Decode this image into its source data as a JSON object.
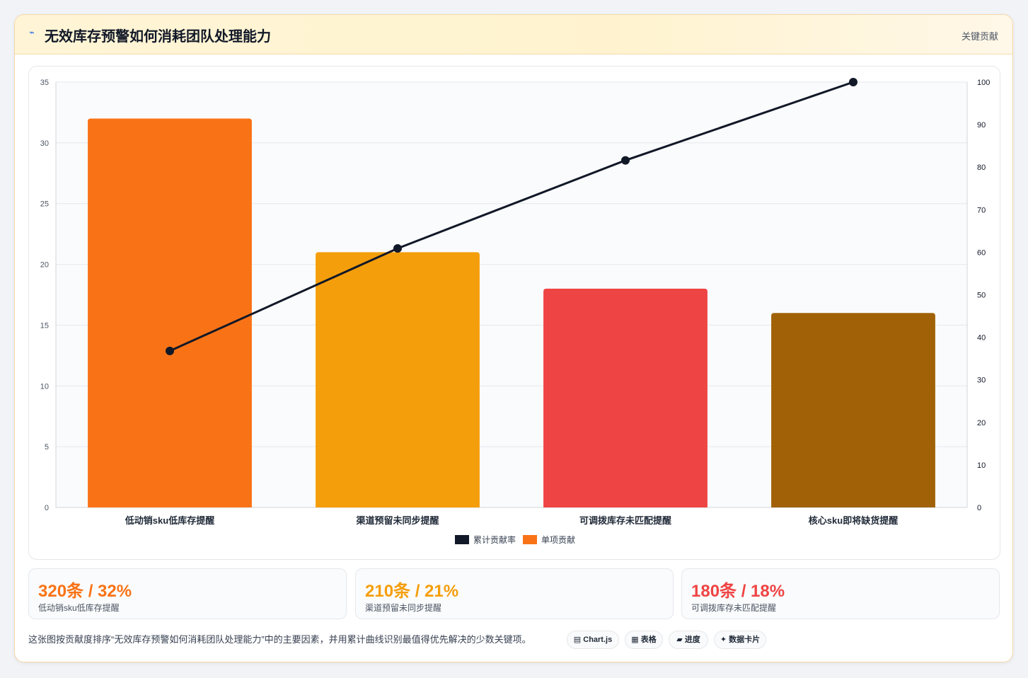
{
  "header": {
    "icon": "trend-line-icon",
    "title": "无效库存预警如何消耗团队处理能力",
    "right_label": "关键贡献"
  },
  "chart_data": {
    "type": "bar",
    "categories": [
      "低动销sku低库存提醒",
      "渠道预留未同步提醒",
      "可调拨库存未匹配提醒",
      "核心sku即将缺货提醒"
    ],
    "series": [
      {
        "name": "单项贡献",
        "type": "bar",
        "axis": "left",
        "values": [
          32,
          21,
          18,
          16
        ],
        "colors": [
          "#f97316",
          "#f59e0b",
          "#ef4444",
          "#a16207"
        ]
      },
      {
        "name": "累计贡献率",
        "type": "line",
        "axis": "right",
        "values": [
          36.8,
          60.9,
          81.6,
          100
        ],
        "color": "#111827"
      }
    ],
    "y_left": {
      "ylim": [
        0,
        35
      ],
      "ticks": [
        0,
        5,
        10,
        15,
        20,
        25,
        30,
        35
      ]
    },
    "y_right": {
      "ylim": [
        0,
        100
      ],
      "ticks": [
        0,
        10,
        20,
        30,
        40,
        50,
        60,
        70,
        80,
        90,
        100
      ]
    },
    "legend": {
      "position": "bottom",
      "items": [
        {
          "label": "累计贡献率",
          "color": "#111827"
        },
        {
          "label": "单项贡献",
          "color": "#f97316"
        }
      ]
    },
    "grid": true
  },
  "stats": [
    {
      "value": "320条 / 32%",
      "label": "低动销sku低库存提醒",
      "color": "#f97316"
    },
    {
      "value": "210条 / 21%",
      "label": "渠道预留未同步提醒",
      "color": "#f59e0b"
    },
    {
      "value": "180条 / 18%",
      "label": "可调拨库存未匹配提醒",
      "color": "#ef4444"
    }
  ],
  "footer": {
    "note": "这张图按贡献度排序“无效库存预警如何消耗团队处理能力”中的主要因素，并用累计曲线识别最值得优先解决的少数关键项。",
    "tags": [
      {
        "icon": "chart-icon",
        "label": "Chart.js"
      },
      {
        "icon": "table-icon",
        "label": "表格"
      },
      {
        "icon": "progress-icon",
        "label": "进度"
      },
      {
        "icon": "sparkle-icon",
        "label": "数据卡片"
      }
    ]
  }
}
